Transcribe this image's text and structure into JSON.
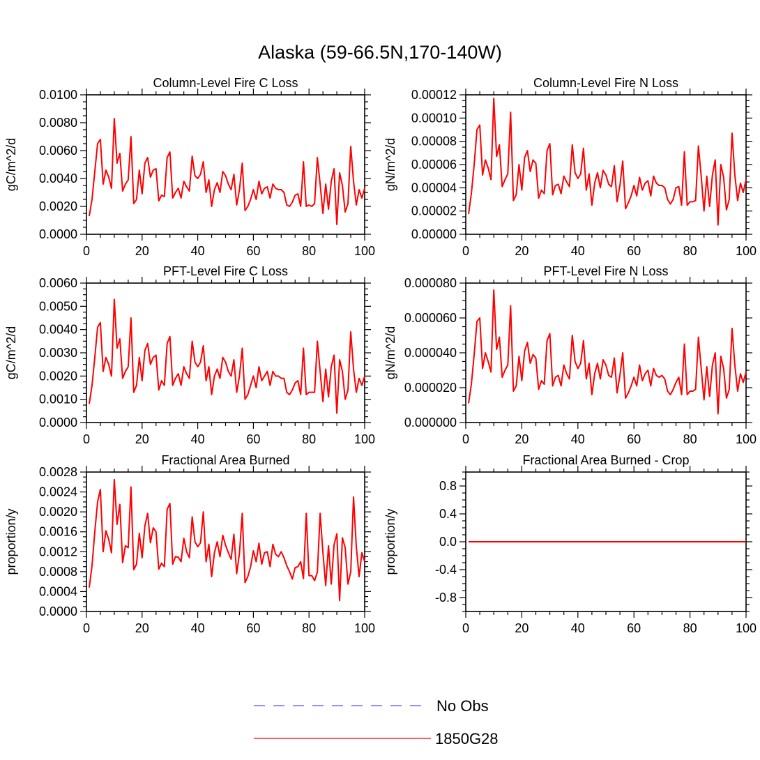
{
  "figure": {
    "title": "Alaska (59-66.5N,170-140W)"
  },
  "legend": {
    "entries": [
      {
        "label": "No Obs",
        "color": "#6b6bff",
        "style": "dashed"
      },
      {
        "label": "1850G28",
        "color": "#ff2a2a",
        "style": "solid"
      }
    ]
  },
  "series_color": "#ff0000",
  "chart_data": [
    {
      "type": "line",
      "title": "Column-Level Fire C Loss",
      "xlabel": "",
      "ylabel": "gC/m^2/d",
      "xlim": [
        0,
        100
      ],
      "ylim": [
        0,
        0.01
      ],
      "x_ticks": [
        "0",
        "20",
        "40",
        "60",
        "80",
        "100"
      ],
      "y_ticks": [
        "0.0000",
        "0.0020",
        "0.0040",
        "0.0060",
        "0.0080",
        "0.0100"
      ],
      "series": [
        {
          "name": "1850G28",
          "values": [
            0.0013,
            0.0025,
            0.0045,
            0.0065,
            0.0068,
            0.0036,
            0.0046,
            0.0041,
            0.0033,
            0.0083,
            0.0051,
            0.0058,
            0.0031,
            0.0036,
            0.0039,
            0.007,
            0.0022,
            0.0025,
            0.0046,
            0.0029,
            0.0051,
            0.0055,
            0.0041,
            0.0046,
            0.0047,
            0.0024,
            0.0028,
            0.0027,
            0.0055,
            0.0059,
            0.0026,
            0.003,
            0.0033,
            0.0026,
            0.0038,
            0.0034,
            0.0031,
            0.0056,
            0.0042,
            0.004,
            0.0043,
            0.0052,
            0.003,
            0.0039,
            0.002,
            0.0032,
            0.0037,
            0.003,
            0.0045,
            0.0042,
            0.0036,
            0.0032,
            0.0043,
            0.0021,
            0.0032,
            0.0051,
            0.0017,
            0.002,
            0.0025,
            0.0032,
            0.0025,
            0.0038,
            0.0029,
            0.0033,
            0.0034,
            0.0026,
            0.0036,
            0.0033,
            0.0032,
            0.0032,
            0.003,
            0.0021,
            0.002,
            0.0023,
            0.0028,
            0.0029,
            0.002,
            0.0052,
            0.002,
            0.0021,
            0.002,
            0.0022,
            0.0055,
            0.0036,
            0.0015,
            0.0036,
            0.0018,
            0.0038,
            0.0047,
            0.0007,
            0.0044,
            0.0035,
            0.0016,
            0.0022,
            0.0063,
            0.0038,
            0.0021,
            0.0032,
            0.0026,
            0.0033
          ]
        }
      ]
    },
    {
      "type": "line",
      "title": "Column-Level Fire N Loss",
      "xlabel": "",
      "ylabel": "gN/m^2/d",
      "xlim": [
        0,
        100
      ],
      "ylim": [
        0,
        0.00012
      ],
      "x_ticks": [
        "0",
        "20",
        "40",
        "60",
        "80",
        "100"
      ],
      "y_ticks": [
        "0.00000",
        "0.00002",
        "0.00004",
        "0.00006",
        "0.00008",
        "0.00010",
        "0.00012"
      ],
      "series": [
        {
          "name": "1850G28",
          "values": [
            1.75e-05,
            3.5e-05,
            6e-05,
            9e-05,
            9.4e-05,
            5.1e-05,
            6.4e-05,
            5.7e-05,
            4.7e-05,
            0.000117,
            6.7e-05,
            7.7e-05,
            4.1e-05,
            4.7e-05,
            5.2e-05,
            0.000105,
            2.9e-05,
            3.4e-05,
            6e-05,
            3.8e-05,
            6.6e-05,
            7.2e-05,
            5.4e-05,
            6.4e-05,
            6.1e-05,
            3.1e-05,
            3.8e-05,
            3.5e-05,
            7.2e-05,
            7.8e-05,
            3.4e-05,
            4.2e-05,
            4.3e-05,
            3.5e-05,
            5e-05,
            4.5e-05,
            4.1e-05,
            7.7e-05,
            5.3e-05,
            4.8e-05,
            5.2e-05,
            7.4e-05,
            3.8e-05,
            5.2e-05,
            2.5e-05,
            4.4e-05,
            5.3e-05,
            4e-05,
            5.5e-05,
            5.1e-05,
            4.3e-05,
            4.1e-05,
            5.9e-05,
            2.8e-05,
            4.2e-05,
            6.3e-05,
            2.2e-05,
            2.7e-05,
            3.3e-05,
            4.2e-05,
            3.3e-05,
            4.9e-05,
            3.8e-05,
            4.4e-05,
            4.6e-05,
            3.3e-05,
            5e-05,
            4.4e-05,
            4.2e-05,
            4.2e-05,
            4e-05,
            3e-05,
            2.6e-05,
            3e-05,
            4e-05,
            4.1e-05,
            2.5e-05,
            7.1e-05,
            2.5e-05,
            2.8e-05,
            2.8e-05,
            2.9e-05,
            7.6e-05,
            5e-05,
            2e-05,
            5e-05,
            2.4e-05,
            5.1e-05,
            6.4e-05,
            8e-06,
            6e-05,
            4.9e-05,
            2.1e-05,
            3e-05,
            8.7e-05,
            5.1e-05,
            2.9e-05,
            4.4e-05,
            3.6e-05,
            4.7e-05
          ]
        }
      ]
    },
    {
      "type": "line",
      "title": "PFT-Level Fire C Loss",
      "xlabel": "",
      "ylabel": "gC/m^2/d",
      "xlim": [
        0,
        100
      ],
      "ylim": [
        0,
        0.006
      ],
      "x_ticks": [
        "0",
        "20",
        "40",
        "60",
        "80",
        "100"
      ],
      "y_ticks": [
        "0.0000",
        "0.0010",
        "0.0020",
        "0.0030",
        "0.0040",
        "0.0050",
        "0.0060"
      ],
      "series": [
        {
          "name": "1850G28",
          "values": [
            0.0008,
            0.0016,
            0.0028,
            0.0041,
            0.0043,
            0.0022,
            0.0028,
            0.0025,
            0.002,
            0.0053,
            0.0032,
            0.0036,
            0.0019,
            0.0022,
            0.0024,
            0.0045,
            0.0013,
            0.0016,
            0.0028,
            0.0018,
            0.0031,
            0.0034,
            0.0025,
            0.0028,
            0.0029,
            0.0014,
            0.0018,
            0.0016,
            0.0034,
            0.0037,
            0.0016,
            0.0019,
            0.0021,
            0.0016,
            0.0024,
            0.0021,
            0.0019,
            0.0035,
            0.0026,
            0.0024,
            0.0026,
            0.0033,
            0.0018,
            0.0024,
            0.0012,
            0.002,
            0.0023,
            0.0019,
            0.0028,
            0.0026,
            0.0022,
            0.002,
            0.0027,
            0.0013,
            0.002,
            0.0032,
            0.001,
            0.0012,
            0.0016,
            0.002,
            0.0015,
            0.0024,
            0.0018,
            0.002,
            0.0022,
            0.0016,
            0.0022,
            0.002,
            0.002,
            0.0019,
            0.0019,
            0.0013,
            0.0012,
            0.0014,
            0.0017,
            0.0018,
            0.0012,
            0.0032,
            0.0012,
            0.0013,
            0.0013,
            0.0013,
            0.0035,
            0.0022,
            0.0009,
            0.0023,
            0.0011,
            0.0024,
            0.0029,
            0.0004,
            0.0027,
            0.0022,
            0.001,
            0.0014,
            0.0039,
            0.0023,
            0.0013,
            0.0019,
            0.0016,
            0.002
          ]
        }
      ]
    },
    {
      "type": "line",
      "title": "PFT-Level Fire N Loss",
      "xlabel": "",
      "ylabel": "gN/m^2/d",
      "xlim": [
        0,
        100
      ],
      "ylim": [
        0,
        8e-05
      ],
      "x_ticks": [
        "0",
        "20",
        "40",
        "60",
        "80",
        "100"
      ],
      "y_ticks": [
        "0.000000",
        "0.000020",
        "0.000040",
        "0.000060",
        "0.000080"
      ],
      "series": [
        {
          "name": "1850G28",
          "values": [
            1.1e-05,
            2.2e-05,
            3.9e-05,
            5.8e-05,
            6e-05,
            3.1e-05,
            4e-05,
            3.5e-05,
            2.9e-05,
            7.6e-05,
            4.2e-05,
            4.9e-05,
            2.6e-05,
            3e-05,
            3.3e-05,
            6.7e-05,
            1.8e-05,
            2.1e-05,
            3.8e-05,
            2.4e-05,
            4.1e-05,
            4.6e-05,
            3.4e-05,
            3.9e-05,
            3.7e-05,
            1.9e-05,
            2.4e-05,
            2.2e-05,
            4.7e-05,
            5.1e-05,
            2.1e-05,
            2.6e-05,
            2.7e-05,
            2.1e-05,
            3.3e-05,
            2.8e-05,
            2.5e-05,
            5e-05,
            3.5e-05,
            3.1e-05,
            3.4e-05,
            4.7e-05,
            2.5e-05,
            3.4e-05,
            1.6e-05,
            2.8e-05,
            3.4e-05,
            2.5e-05,
            3.6e-05,
            3.3e-05,
            2.7e-05,
            2.6e-05,
            3.7e-05,
            1.7e-05,
            2.7e-05,
            4e-05,
            1.4e-05,
            1.7e-05,
            2.1e-05,
            2.6e-05,
            2.1e-05,
            3.3e-05,
            2.4e-05,
            2.8e-05,
            3e-05,
            2.1e-05,
            3.1e-05,
            2.7e-05,
            2.6e-05,
            2.7e-05,
            2.5e-05,
            1.8e-05,
            1.6e-05,
            1.9e-05,
            2.3e-05,
            2.6e-05,
            1.6e-05,
            4.5e-05,
            1.6e-05,
            1.8e-05,
            1.8e-05,
            1.9e-05,
            4.9e-05,
            3.1e-05,
            1.3e-05,
            3.2e-05,
            1.5e-05,
            3.3e-05,
            4e-05,
            5e-06,
            3.8e-05,
            3.1e-05,
            1.4e-05,
            1.9e-05,
            5.4e-05,
            3.3e-05,
            1.8e-05,
            2.8e-05,
            2.3e-05,
            2.9e-05
          ]
        }
      ]
    },
    {
      "type": "line",
      "title": "Fractional Area Burned",
      "xlabel": "",
      "ylabel": "proportion/y",
      "xlim": [
        0,
        100
      ],
      "ylim": [
        0,
        0.0028
      ],
      "x_ticks": [
        "0",
        "20",
        "40",
        "60",
        "80",
        "100"
      ],
      "y_ticks": [
        "0.0000",
        "0.0004",
        "0.0008",
        "0.0012",
        "0.0016",
        "0.0020",
        "0.0024",
        "0.0028"
      ],
      "series": [
        {
          "name": "1850G28",
          "values": [
            0.00048,
            0.00092,
            0.0016,
            0.0022,
            0.00245,
            0.0012,
            0.00162,
            0.00145,
            0.00118,
            0.00265,
            0.00175,
            0.00215,
            0.00098,
            0.00132,
            0.00128,
            0.0025,
            0.00084,
            0.00095,
            0.00157,
            0.00108,
            0.00172,
            0.00197,
            0.00138,
            0.00168,
            0.0016,
            0.00085,
            0.00097,
            0.0009,
            0.00205,
            0.00217,
            0.00095,
            0.0011,
            0.00109,
            0.001,
            0.00147,
            0.0012,
            0.00108,
            0.0019,
            0.0014,
            0.0013,
            0.00138,
            0.002,
            0.001,
            0.00135,
            0.0007,
            0.00118,
            0.0014,
            0.0011,
            0.00153,
            0.00133,
            0.00118,
            0.00105,
            0.00155,
            0.00076,
            0.00117,
            0.00197,
            0.00058,
            0.0007,
            0.0009,
            0.00122,
            0.001,
            0.00137,
            0.00095,
            0.00118,
            0.0012,
            0.0009,
            0.00135,
            0.00115,
            0.0011,
            0.0012,
            0.00108,
            0.00092,
            0.0008,
            0.00065,
            0.00088,
            0.0009,
            0.001,
            0.00066,
            0.00197,
            0.00072,
            0.00072,
            0.00062,
            0.00079,
            0.00197,
            0.00118,
            0.00052,
            0.00132,
            0.00055,
            0.00134,
            0.00156,
            0.00022,
            0.00148,
            0.00128,
            0.00055,
            0.0008,
            0.0023,
            0.0013,
            0.0007,
            0.00118,
            0.001
          ]
        }
      ]
    },
    {
      "type": "line",
      "title": "Fractional Area Burned - Crop",
      "xlabel": "",
      "ylabel": "proportion/y",
      "xlim": [
        0,
        100
      ],
      "ylim": [
        -1,
        1
      ],
      "x_ticks": [
        "0",
        "20",
        "40",
        "60",
        "80",
        "100"
      ],
      "y_tick_values": [
        -0.8,
        -0.4,
        0.0,
        0.4,
        0.8
      ],
      "y_ticks": [
        "-0.8",
        "-0.4",
        "0.0",
        "0.4",
        "0.8"
      ],
      "series": [
        {
          "name": "1850G28",
          "values": [
            0,
            0,
            0,
            0,
            0,
            0,
            0,
            0,
            0,
            0,
            0,
            0,
            0,
            0,
            0,
            0,
            0,
            0,
            0,
            0,
            0,
            0,
            0,
            0,
            0,
            0,
            0,
            0,
            0,
            0,
            0,
            0,
            0,
            0,
            0,
            0,
            0,
            0,
            0,
            0,
            0,
            0,
            0,
            0,
            0,
            0,
            0,
            0,
            0,
            0,
            0,
            0,
            0,
            0,
            0,
            0,
            0,
            0,
            0,
            0,
            0,
            0,
            0,
            0,
            0,
            0,
            0,
            0,
            0,
            0,
            0,
            0,
            0,
            0,
            0,
            0,
            0,
            0,
            0,
            0,
            0,
            0,
            0,
            0,
            0,
            0,
            0,
            0,
            0,
            0,
            0,
            0,
            0,
            0,
            0,
            0,
            0,
            0,
            0,
            0
          ]
        }
      ]
    }
  ]
}
